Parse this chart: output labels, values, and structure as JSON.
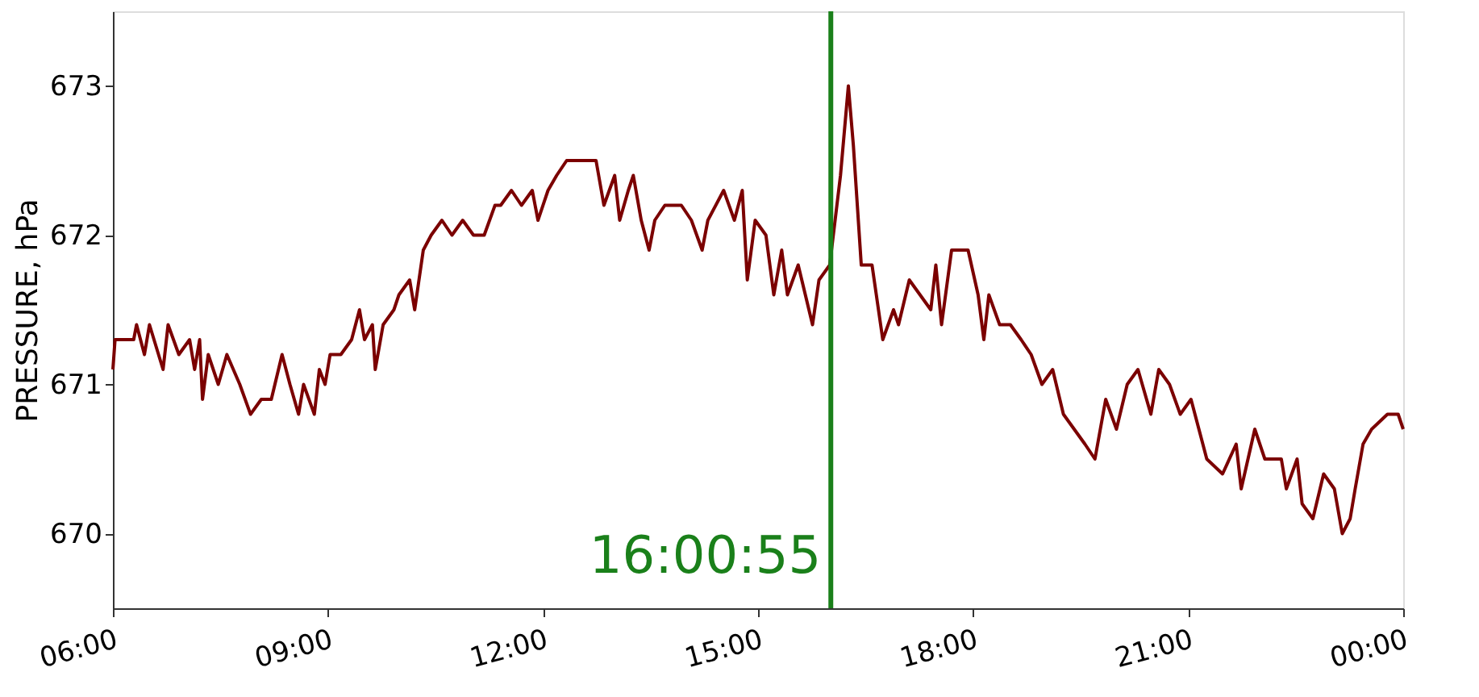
{
  "chart_data": {
    "type": "line",
    "ylabel": "PRESSURE, hPa",
    "x": [
      6.0,
      6.03,
      6.29,
      6.33,
      6.44,
      6.51,
      6.7,
      6.77,
      6.92,
      7.07,
      7.14,
      7.21,
      7.25,
      7.33,
      7.47,
      7.59,
      7.77,
      7.92,
      8.07,
      8.21,
      8.36,
      8.47,
      8.59,
      8.66,
      8.81,
      8.88,
      8.96,
      9.03,
      9.18,
      9.33,
      9.44,
      9.51,
      9.62,
      9.66,
      9.77,
      9.92,
      9.99,
      10.14,
      10.21,
      10.33,
      10.44,
      10.59,
      10.73,
      10.88,
      11.03,
      11.18,
      11.33,
      11.41,
      11.56,
      11.7,
      11.85,
      11.93,
      12.07,
      12.19,
      12.33,
      12.74,
      12.85,
      13.0,
      13.07,
      13.19,
      13.26,
      13.37,
      13.48,
      13.56,
      13.7,
      13.93,
      14.07,
      14.22,
      14.3,
      14.52,
      14.67,
      14.78,
      14.85,
      14.96,
      15.11,
      15.22,
      15.33,
      15.41,
      15.56,
      15.76,
      15.85,
      16.0,
      16.15,
      16.26,
      16.33,
      16.44,
      16.59,
      16.74,
      16.89,
      16.96,
      17.11,
      17.26,
      17.41,
      17.48,
      17.56,
      17.7,
      17.85,
      17.93,
      18.07,
      18.15,
      18.22,
      18.37,
      18.52,
      18.67,
      18.81,
      18.96,
      19.11,
      19.26,
      19.41,
      19.56,
      19.7,
      19.85,
      20.0,
      20.15,
      20.3,
      20.48,
      20.59,
      20.74,
      20.89,
      21.04,
      21.26,
      21.48,
      21.67,
      21.74,
      21.93,
      22.07,
      22.3,
      22.37,
      22.52,
      22.59,
      22.74,
      22.89,
      23.04,
      23.15,
      23.26,
      23.33,
      23.44,
      23.56,
      23.78,
      23.93,
      24.0
    ],
    "series": [
      {
        "color": "#7b0000",
        "values": [
          671.1,
          671.3,
          671.3,
          671.4,
          671.2,
          671.4,
          671.1,
          671.4,
          671.2,
          671.3,
          671.1,
          671.3,
          670.9,
          671.2,
          671.0,
          671.2,
          671.0,
          670.8,
          670.9,
          670.9,
          671.2,
          671.0,
          670.8,
          671.0,
          670.8,
          671.1,
          671.0,
          671.2,
          671.2,
          671.3,
          671.5,
          671.3,
          671.4,
          671.1,
          671.4,
          671.5,
          671.6,
          671.7,
          671.5,
          671.9,
          672.0,
          672.1,
          672.0,
          672.1,
          672.0,
          672.0,
          672.2,
          672.2,
          672.3,
          672.2,
          672.3,
          672.1,
          672.3,
          672.4,
          672.5,
          672.5,
          672.2,
          672.4,
          672.1,
          672.3,
          672.4,
          672.1,
          671.9,
          672.1,
          672.2,
          672.2,
          672.1,
          671.9,
          672.1,
          672.3,
          672.1,
          672.3,
          671.7,
          672.1,
          672.0,
          671.6,
          671.9,
          671.6,
          671.8,
          671.4,
          671.7,
          671.8,
          672.4,
          673.0,
          672.6,
          671.8,
          671.8,
          671.3,
          671.5,
          671.4,
          671.7,
          671.6,
          671.5,
          671.8,
          671.4,
          671.9,
          671.9,
          671.9,
          671.6,
          671.3,
          671.6,
          671.4,
          671.4,
          671.3,
          671.2,
          671.0,
          671.1,
          670.8,
          670.7,
          670.6,
          670.5,
          670.9,
          670.7,
          671.0,
          671.1,
          670.8,
          671.1,
          671.0,
          670.8,
          670.9,
          670.5,
          670.4,
          670.6,
          670.3,
          670.7,
          670.5,
          670.5,
          670.3,
          670.5,
          670.2,
          670.1,
          670.4,
          670.3,
          670.0,
          670.1,
          670.3,
          670.6,
          670.7,
          670.8,
          670.8,
          670.7
        ]
      }
    ],
    "xlim": [
      6,
      24
    ],
    "xticks": [
      {
        "value": 6,
        "label": "06:00"
      },
      {
        "value": 9,
        "label": "09:00"
      },
      {
        "value": 12,
        "label": "12:00"
      },
      {
        "value": 15,
        "label": "15:00"
      },
      {
        "value": 18,
        "label": "18:00"
      },
      {
        "value": 21,
        "label": "21:00"
      },
      {
        "value": 24,
        "label": "00:00"
      }
    ],
    "ylim": [
      669.5,
      673.5
    ],
    "yticks": [
      670,
      671,
      672,
      673
    ],
    "ref_lines": [
      {
        "axis": "x",
        "value": 16.0153,
        "label": "16:00:55",
        "color": "#1a801a"
      }
    ],
    "grid": false
  }
}
